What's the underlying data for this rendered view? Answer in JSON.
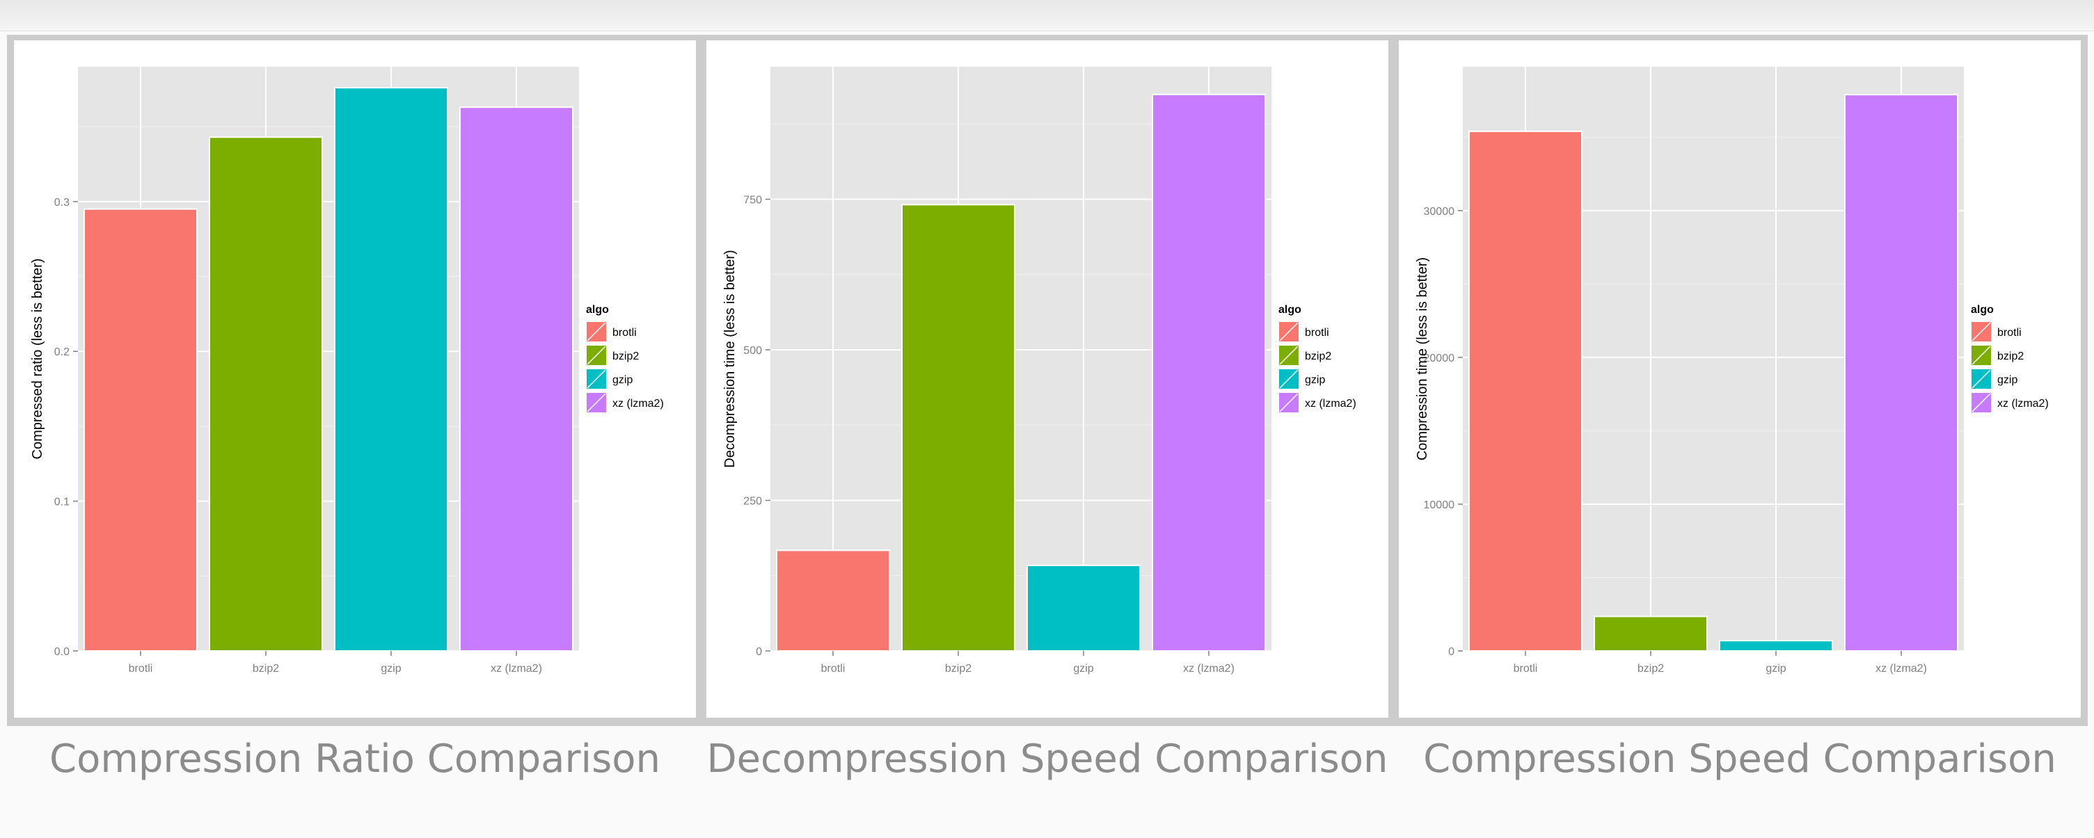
{
  "captions": [
    "Compression Ratio Comparison",
    "Decompression Speed Comparison",
    "Compression Speed Comparison"
  ],
  "chart_data": [
    {
      "type": "bar",
      "categories": [
        "brotli",
        "bzip2",
        "gzip",
        "xz (lzma2)"
      ],
      "values": [
        0.295,
        0.343,
        0.376,
        0.363
      ],
      "ylabel": "Compressed ratio (less is better)",
      "xlabel": "",
      "ylim": [
        0,
        0.39
      ],
      "yticks": [
        0.0,
        0.1,
        0.2,
        0.3
      ],
      "ytick_labels": [
        "0.0",
        "0.1",
        "0.2",
        "0.3"
      ],
      "legend": {
        "title": "algo",
        "entries": [
          "brotli",
          "bzip2",
          "gzip",
          "xz (lzma2)"
        ],
        "placement": "right"
      },
      "colors": [
        "#F8766D",
        "#7CAE00",
        "#00BFC4",
        "#C77CFF"
      ],
      "grid": true
    },
    {
      "type": "bar",
      "categories": [
        "brotli",
        "bzip2",
        "gzip",
        "xz (lzma2)"
      ],
      "values": [
        167,
        741,
        142,
        924
      ],
      "ylabel": "Decompression time (less is better)",
      "xlabel": "",
      "ylim": [
        0,
        970
      ],
      "yticks": [
        0,
        250,
        500,
        750
      ],
      "ytick_labels": [
        "0",
        "250",
        "500",
        "750"
      ],
      "legend": {
        "title": "algo",
        "entries": [
          "brotli",
          "bzip2",
          "gzip",
          "xz (lzma2)"
        ],
        "placement": "right"
      },
      "colors": [
        "#F8766D",
        "#7CAE00",
        "#00BFC4",
        "#C77CFF"
      ],
      "grid": true
    },
    {
      "type": "bar",
      "categories": [
        "brotli",
        "bzip2",
        "gzip",
        "xz (lzma2)"
      ],
      "values": [
        35400,
        2350,
        700,
        37900
      ],
      "ylabel": "Compression time (less is better)",
      "xlabel": "",
      "ylim": [
        0,
        39800
      ],
      "yticks": [
        0,
        10000,
        20000,
        30000
      ],
      "ytick_labels": [
        "0",
        "10000",
        "20000",
        "30000"
      ],
      "legend": {
        "title": "algo",
        "entries": [
          "brotli",
          "bzip2",
          "gzip",
          "xz (lzma2)"
        ],
        "placement": "right"
      },
      "colors": [
        "#F8766D",
        "#7CAE00",
        "#00BFC4",
        "#C77CFF"
      ],
      "grid": true
    }
  ]
}
